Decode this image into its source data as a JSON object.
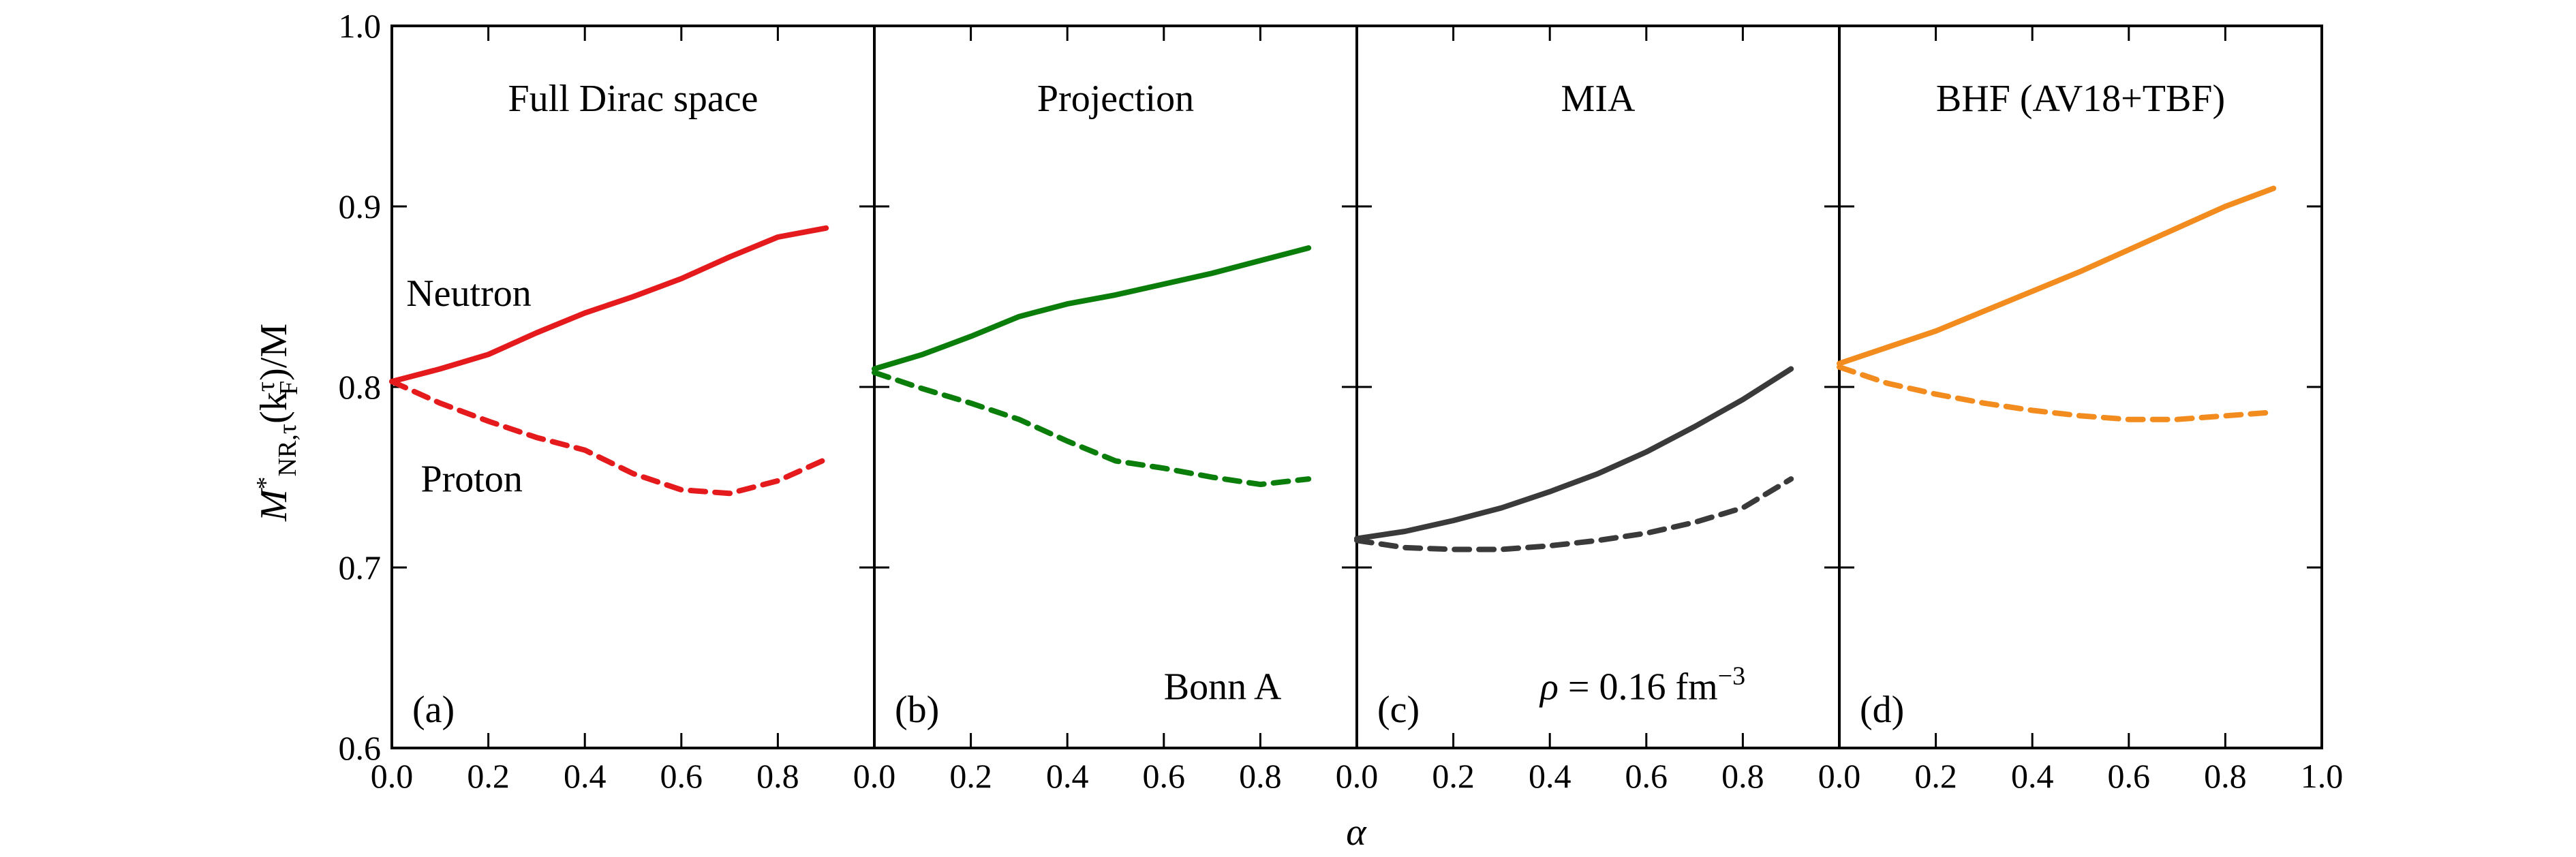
{
  "chart_data": {
    "type": "line",
    "xlabel": "α",
    "ylabel": {
      "main": "M",
      "star": "*",
      "sub1": "NR,τ",
      "mid": "(k",
      "sup2": "τ",
      "sub2": "F",
      "tail": ")/M"
    },
    "xlim": [
      0.0,
      1.0
    ],
    "ylim": [
      0.6,
      1.0
    ],
    "y_ticks": [
      "0.6",
      "0.7",
      "0.8",
      "0.9",
      "1.0"
    ],
    "x_ticks_inner": [
      "0.0",
      "0.2",
      "0.4",
      "0.6",
      "0.8"
    ],
    "x_tick_last": "1.0",
    "panels": [
      {
        "letter": "(a)",
        "title": "Full Dirac space",
        "color": "#e41a1c",
        "annotations": [
          {
            "text": "Neutron",
            "x": 0.03,
            "y": 0.845
          },
          {
            "text": "Proton",
            "x": 0.06,
            "y": 0.742
          }
        ],
        "series": [
          {
            "name": "Neutron",
            "style": "solid",
            "x": [
              0.0,
              0.1,
              0.2,
              0.3,
              0.4,
              0.5,
              0.6,
              0.7,
              0.8,
              0.9
            ],
            "y": [
              0.803,
              0.81,
              0.818,
              0.83,
              0.841,
              0.85,
              0.86,
              0.872,
              0.883,
              0.888
            ]
          },
          {
            "name": "Proton",
            "style": "dashed",
            "x": [
              0.0,
              0.1,
              0.2,
              0.3,
              0.4,
              0.5,
              0.6,
              0.7,
              0.8,
              0.9
            ],
            "y": [
              0.803,
              0.791,
              0.781,
              0.772,
              0.765,
              0.752,
              0.743,
              0.741,
              0.748,
              0.76
            ]
          }
        ]
      },
      {
        "letter": "(b)",
        "title": "Projection",
        "color": "#0a7d0a",
        "annotations": [
          {
            "text": "Bonn A",
            "x": 0.6,
            "y": 0.627
          }
        ],
        "series": [
          {
            "name": "Neutron",
            "style": "solid",
            "x": [
              0.0,
              0.1,
              0.2,
              0.3,
              0.4,
              0.5,
              0.6,
              0.7,
              0.8,
              0.9
            ],
            "y": [
              0.81,
              0.818,
              0.828,
              0.839,
              0.846,
              0.851,
              0.857,
              0.863,
              0.87,
              0.877
            ]
          },
          {
            "name": "Proton",
            "style": "dashed",
            "x": [
              0.0,
              0.1,
              0.2,
              0.3,
              0.4,
              0.5,
              0.6,
              0.7,
              0.8,
              0.9
            ],
            "y": [
              0.808,
              0.799,
              0.791,
              0.782,
              0.77,
              0.759,
              0.755,
              0.75,
              0.746,
              0.749
            ]
          }
        ]
      },
      {
        "letter": "(c)",
        "title": "MIA",
        "color": "#3a3a3a",
        "annotations": [
          {
            "text": "ρ = 0.16 fm",
            "sup": "−3",
            "x": 0.38,
            "y": 0.627
          }
        ],
        "series": [
          {
            "name": "Neutron",
            "style": "solid",
            "x": [
              0.0,
              0.1,
              0.2,
              0.3,
              0.4,
              0.5,
              0.6,
              0.7,
              0.8,
              0.9
            ],
            "y": [
              0.716,
              0.72,
              0.726,
              0.733,
              0.742,
              0.752,
              0.764,
              0.778,
              0.793,
              0.81
            ]
          },
          {
            "name": "Proton",
            "style": "dashed",
            "x": [
              0.0,
              0.1,
              0.2,
              0.3,
              0.4,
              0.5,
              0.6,
              0.7,
              0.8,
              0.9
            ],
            "y": [
              0.715,
              0.711,
              0.71,
              0.71,
              0.712,
              0.715,
              0.719,
              0.725,
              0.733,
              0.749
            ]
          }
        ]
      },
      {
        "letter": "(d)",
        "title": "BHF (AV18+TBF)",
        "color": "#f28c1e",
        "annotations": [],
        "series": [
          {
            "name": "Neutron",
            "style": "solid",
            "x": [
              0.0,
              0.1,
              0.2,
              0.3,
              0.4,
              0.5,
              0.6,
              0.7,
              0.8,
              0.9
            ],
            "y": [
              0.813,
              0.822,
              0.831,
              0.842,
              0.853,
              0.864,
              0.876,
              0.888,
              0.9,
              0.91
            ]
          },
          {
            "name": "Proton",
            "style": "dashed",
            "x": [
              0.0,
              0.1,
              0.2,
              0.3,
              0.4,
              0.5,
              0.6,
              0.7,
              0.8,
              0.9
            ],
            "y": [
              0.811,
              0.802,
              0.796,
              0.791,
              0.787,
              0.784,
              0.782,
              0.782,
              0.784,
              0.786
            ]
          }
        ]
      }
    ]
  }
}
